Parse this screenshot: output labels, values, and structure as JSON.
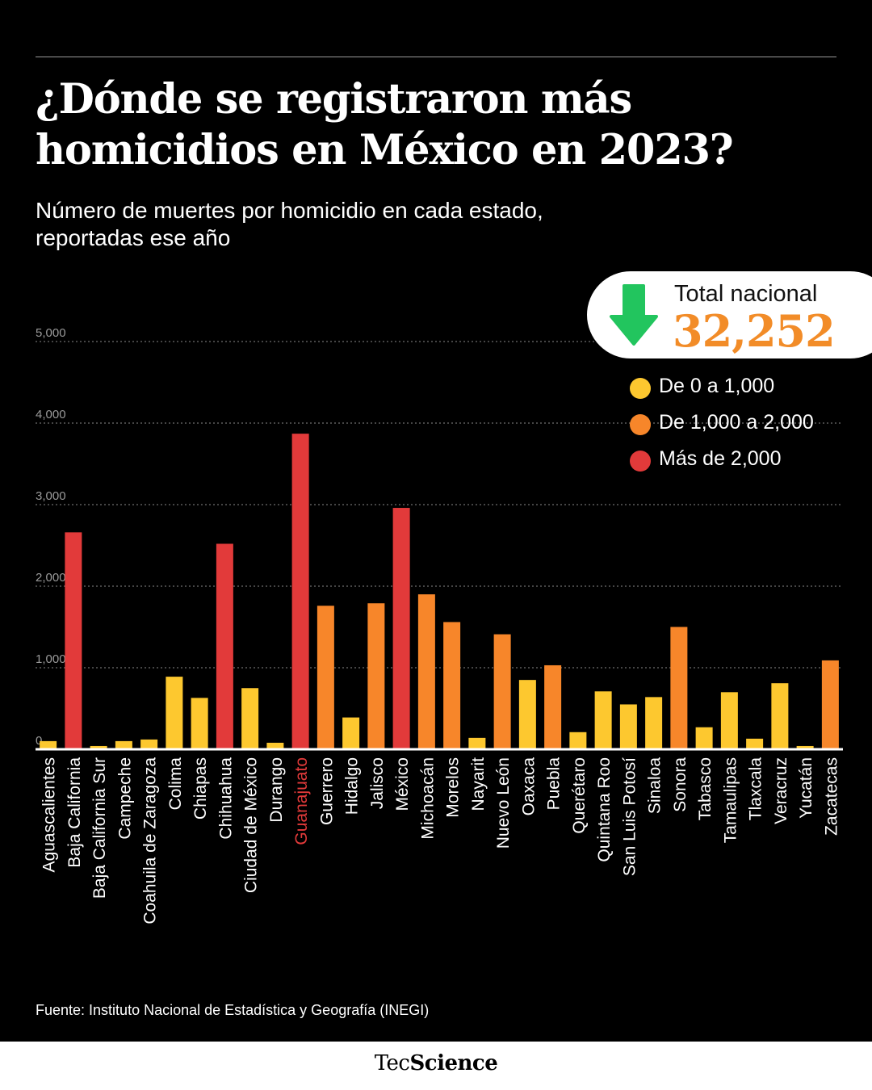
{
  "header": {
    "title": "¿Dónde se registraron más homicidios en México en 2023?",
    "subtitle": "Número de muertes por homicidio en cada estado, reportadas ese año"
  },
  "total": {
    "label": "Total nacional",
    "value": "32,252",
    "icon": "arrow-down-icon",
    "color": "#22c55e"
  },
  "legend": [
    {
      "label": "De 0 a 1,000",
      "color": "#fdc82f"
    },
    {
      "label": "De 1,000 a 2,000",
      "color": "#f7862a"
    },
    {
      "label": "Más de 2,000",
      "color": "#e23a3a"
    }
  ],
  "chart_data": {
    "type": "bar",
    "title": "¿Dónde se registraron más homicidios en México en 2023?",
    "ylim": [
      0,
      5000
    ],
    "yticks": [
      "0",
      "1,000",
      "2,000",
      "3,000",
      "4,000",
      "5,000"
    ],
    "grid": true,
    "legend_position": "top-right",
    "highlight_category": "Guanajuato",
    "highlight_color": "#e23a3a",
    "categories": [
      "Aguascalientes",
      "Baja California",
      "Baja California Sur",
      "Campeche",
      "Coahuila de Zaragoza",
      "Colima",
      "Chiapas",
      "Chihuahua",
      "Ciudad de México",
      "Durango",
      "Guanajuato",
      "Guerrero",
      "Hidalgo",
      "Jalisco",
      "México",
      "Michoacán",
      "Morelos",
      "Nayarit",
      "Nuevo León",
      "Oaxaca",
      "Puebla",
      "Querétaro",
      "Quintana Roo",
      "San Luis Potosí",
      "Sinaloa",
      "Sonora",
      "Tabasco",
      "Tamaulipas",
      "Tlaxcala",
      "Veracruz",
      "Yucatán",
      "Zacatecas"
    ],
    "values": [
      100,
      2660,
      40,
      100,
      120,
      890,
      630,
      2520,
      750,
      80,
      3870,
      1760,
      390,
      1790,
      2960,
      1900,
      1560,
      140,
      1410,
      850,
      1030,
      210,
      710,
      550,
      640,
      1500,
      270,
      700,
      130,
      810,
      40,
      1090
    ]
  },
  "source": "Fuente: Instituto Nacional de Estadística y Geografía (INEGI)",
  "brand": {
    "part1": "Tec",
    "part2": "Science"
  }
}
